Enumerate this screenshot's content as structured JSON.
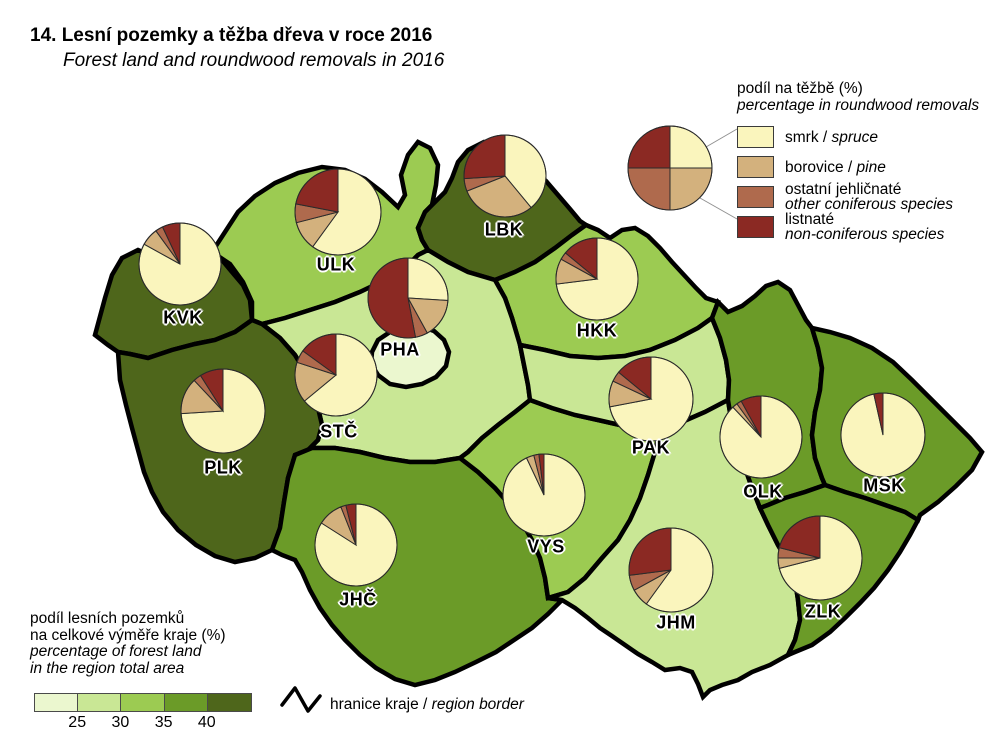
{
  "title": {
    "line1": "14. Lesní pozemky a těžba dřeva v roce 2016",
    "line2": "Forest land and roundwood removals in 2016"
  },
  "pie_legend": {
    "title_cs": "podíl na těžbě (%)",
    "title_en": "percentage in roundwood removals",
    "items": [
      {
        "key": "spruce",
        "label_cs": "smrk",
        "label_en": "spruce",
        "color": "#FAF5BD",
        "two_line": false
      },
      {
        "key": "pine",
        "label_cs": "borovice",
        "label_en": "pine",
        "color": "#D3B17D",
        "two_line": false
      },
      {
        "key": "other_coniferous",
        "label_cs": "ostatní jehličnaté",
        "label_en": "other coniferous species",
        "color": "#AF6A4D",
        "two_line": true
      },
      {
        "key": "non_coniferous",
        "label_cs": "listnaté",
        "label_en": "non-coniferous species",
        "color": "#8B2923",
        "two_line": true
      }
    ],
    "sample_pie": {
      "spruce": 25,
      "pine": 25,
      "other_coniferous": 25,
      "non_coniferous": 25
    }
  },
  "forest_legend": {
    "title_cs_1": "podíl lesních pozemků",
    "title_cs_2": "na celkové výměře kraje (%)",
    "title_en_1": "percentage of forest land",
    "title_en_2": "in the region total area",
    "class_colors": [
      "#EBF7CF",
      "#C9E795",
      "#9CCB52",
      "#6B9B28",
      "#4E661B"
    ],
    "ticks": [
      "25",
      "30",
      "35",
      "40"
    ]
  },
  "border_legend": {
    "label_cs": "hranice kraje",
    "label_en": "region border"
  },
  "map": {
    "border_color": "#000000",
    "pie_outline_color": "#2b2b2b",
    "regions": [
      {
        "code": "KVK",
        "label": "KVK",
        "forest_class": 5,
        "pie": {
          "spruce": 83,
          "pine": 7,
          "other_coniferous": 3,
          "non_coniferous": 7
        }
      },
      {
        "code": "ULK",
        "label": "ULK",
        "forest_class": 3,
        "pie": {
          "spruce": 60,
          "pine": 11,
          "other_coniferous": 7,
          "non_coniferous": 22
        }
      },
      {
        "code": "LBK",
        "label": "LBK",
        "forest_class": 5,
        "pie": {
          "spruce": 39,
          "pine": 30,
          "other_coniferous": 5,
          "non_coniferous": 26
        }
      },
      {
        "code": "HKK",
        "label": "HKK",
        "forest_class": 3,
        "pie": {
          "spruce": 73,
          "pine": 10,
          "other_coniferous": 3,
          "non_coniferous": 14
        }
      },
      {
        "code": "PHA",
        "label": "PHA",
        "forest_class": 1,
        "pie": {
          "spruce": 26,
          "pine": 16,
          "other_coniferous": 5,
          "non_coniferous": 53
        }
      },
      {
        "code": "STC",
        "label": "STČ",
        "forest_class": 2,
        "pie": {
          "spruce": 64,
          "pine": 16,
          "other_coniferous": 5,
          "non_coniferous": 15
        }
      },
      {
        "code": "PLK",
        "label": "PLK",
        "forest_class": 5,
        "pie": {
          "spruce": 74,
          "pine": 14,
          "other_coniferous": 3,
          "non_coniferous": 9
        }
      },
      {
        "code": "PAK",
        "label": "PAK",
        "forest_class": 2,
        "pie": {
          "spruce": 72,
          "pine": 10,
          "other_coniferous": 4,
          "non_coniferous": 14
        }
      },
      {
        "code": "OLK",
        "label": "OLK",
        "forest_class": 4,
        "pie": {
          "spruce": 88,
          "pine": 2,
          "other_coniferous": 2,
          "non_coniferous": 8
        }
      },
      {
        "code": "MSK",
        "label": "MSK",
        "forest_class": 4,
        "pie": {
          "spruce": 96.5,
          "pine": 0,
          "other_coniferous": 0,
          "non_coniferous": 3.5
        }
      },
      {
        "code": "VYS",
        "label": "VYS",
        "forest_class": 3,
        "pie": {
          "spruce": 93,
          "pine": 3,
          "other_coniferous": 2,
          "non_coniferous": 2
        }
      },
      {
        "code": "JHC",
        "label": "JHČ",
        "forest_class": 4,
        "pie": {
          "spruce": 84,
          "pine": 10,
          "other_coniferous": 2,
          "non_coniferous": 4
        }
      },
      {
        "code": "JHM",
        "label": "JHM",
        "forest_class": 2,
        "pie": {
          "spruce": 60,
          "pine": 7,
          "other_coniferous": 6,
          "non_coniferous": 27
        }
      },
      {
        "code": "ZLK",
        "label": "ZLK",
        "forest_class": 4,
        "pie": {
          "spruce": 71,
          "pine": 4,
          "other_coniferous": 4,
          "non_coniferous": 21
        }
      }
    ]
  }
}
